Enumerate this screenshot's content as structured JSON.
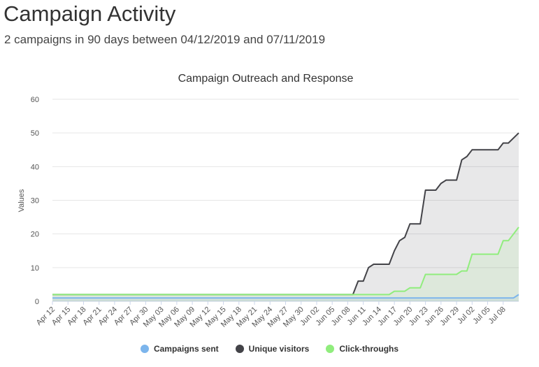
{
  "header": {
    "title": "Campaign Activity",
    "subtitle": "2 campaigns in 90 days between 04/12/2019 and 07/11/2019"
  },
  "chart_data": {
    "type": "area",
    "title": "Campaign Outreach and Response",
    "xlabel": "",
    "ylabel": "Values",
    "ylim": [
      0,
      60
    ],
    "yticks": [
      0,
      10,
      20,
      30,
      40,
      50,
      60
    ],
    "x_start": "2019-04-12",
    "x_end": "2019-07-11",
    "x_tick_labels": [
      "Apr 12",
      "Apr 15",
      "Apr 18",
      "Apr 21",
      "Apr 24",
      "Apr 27",
      "Apr 30",
      "May 03",
      "May 06",
      "May 09",
      "May 12",
      "May 15",
      "May 18",
      "May 21",
      "May 24",
      "May 27",
      "May 30",
      "Jun 02",
      "Jun 05",
      "Jun 08",
      "Jun 11",
      "Jun 14",
      "Jun 17",
      "Jun 20",
      "Jun 23",
      "Jun 26",
      "Jun 29",
      "Jul 02",
      "Jul 05",
      "Jul 08"
    ],
    "grid": true,
    "legend_position": "bottom",
    "series": [
      {
        "name": "Campaigns sent",
        "color": "#7cb5ec",
        "points": [
          [
            "2019-04-12",
            1
          ],
          [
            "2019-07-10",
            1
          ],
          [
            "2019-07-11",
            2
          ]
        ]
      },
      {
        "name": "Unique visitors",
        "color": "#434348",
        "points": [
          [
            "2019-04-12",
            2
          ],
          [
            "2019-06-09",
            2
          ],
          [
            "2019-06-10",
            6
          ],
          [
            "2019-06-11",
            6
          ],
          [
            "2019-06-12",
            10
          ],
          [
            "2019-06-13",
            11
          ],
          [
            "2019-06-16",
            11
          ],
          [
            "2019-06-17",
            15
          ],
          [
            "2019-06-18",
            18
          ],
          [
            "2019-06-19",
            19
          ],
          [
            "2019-06-20",
            23
          ],
          [
            "2019-06-22",
            23
          ],
          [
            "2019-06-23",
            33
          ],
          [
            "2019-06-25",
            33
          ],
          [
            "2019-06-26",
            35
          ],
          [
            "2019-06-27",
            36
          ],
          [
            "2019-06-29",
            36
          ],
          [
            "2019-06-30",
            42
          ],
          [
            "2019-07-01",
            43
          ],
          [
            "2019-07-02",
            45
          ],
          [
            "2019-07-07",
            45
          ],
          [
            "2019-07-08",
            47
          ],
          [
            "2019-07-09",
            47
          ],
          [
            "2019-07-11",
            50
          ]
        ]
      },
      {
        "name": "Click-throughs",
        "color": "#90ed7d",
        "points": [
          [
            "2019-04-12",
            2
          ],
          [
            "2019-06-16",
            2
          ],
          [
            "2019-06-17",
            3
          ],
          [
            "2019-06-19",
            3
          ],
          [
            "2019-06-20",
            4
          ],
          [
            "2019-06-22",
            4
          ],
          [
            "2019-06-23",
            8
          ],
          [
            "2019-06-29",
            8
          ],
          [
            "2019-06-30",
            9
          ],
          [
            "2019-07-01",
            9
          ],
          [
            "2019-07-02",
            14
          ],
          [
            "2019-07-07",
            14
          ],
          [
            "2019-07-08",
            18
          ],
          [
            "2019-07-09",
            18
          ],
          [
            "2019-07-11",
            22
          ]
        ]
      }
    ]
  }
}
